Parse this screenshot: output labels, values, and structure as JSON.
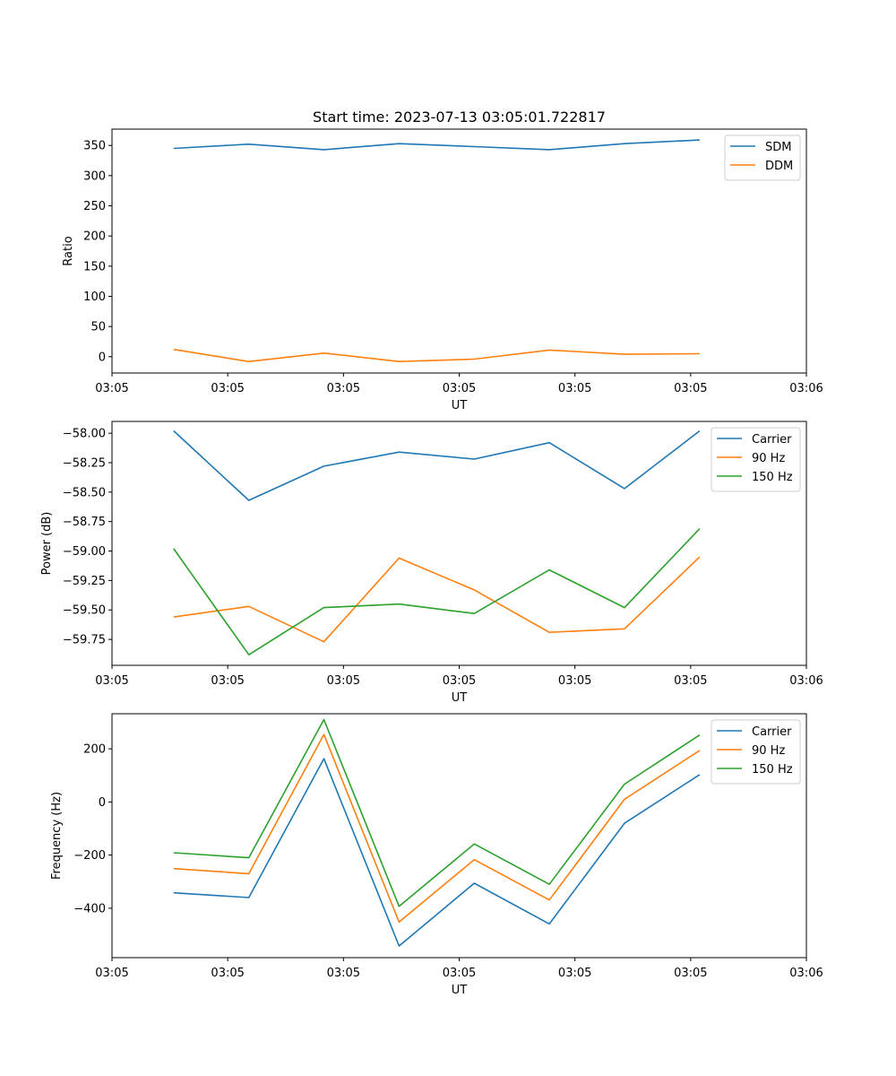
{
  "chart_data": [
    {
      "type": "line",
      "title": "Start time: 2023-07-13 03:05:01.722817",
      "xlabel": "UT",
      "ylabel": "Ratio",
      "x": [
        1,
        2,
        3,
        4,
        5,
        6,
        7,
        8
      ],
      "xlim": [
        0.18,
        9.42
      ],
      "xticks": [
        {
          "value": 0.18,
          "label": "03:05"
        },
        {
          "value": 1.72,
          "label": "03:05"
        },
        {
          "value": 3.26,
          "label": "03:05"
        },
        {
          "value": 4.8,
          "label": "03:05"
        },
        {
          "value": 6.34,
          "label": "03:05"
        },
        {
          "value": 7.88,
          "label": "03:05"
        },
        {
          "value": 9.42,
          "label": "03:06"
        }
      ],
      "ylim": [
        -27,
        377
      ],
      "yticks": [
        {
          "value": 0,
          "label": "0"
        },
        {
          "value": 50,
          "label": "50"
        },
        {
          "value": 100,
          "label": "100"
        },
        {
          "value": 150,
          "label": "150"
        },
        {
          "value": 200,
          "label": "200"
        },
        {
          "value": 250,
          "label": "250"
        },
        {
          "value": 300,
          "label": "300"
        },
        {
          "value": 350,
          "label": "350"
        }
      ],
      "legend": "top-right",
      "series": [
        {
          "name": "SDM",
          "color": "#1f77b4",
          "values": [
            345,
            352,
            343,
            353,
            348,
            343,
            353,
            359
          ]
        },
        {
          "name": "DDM",
          "color": "#ff7f0e",
          "values": [
            12,
            -8,
            6,
            -8,
            -4,
            11,
            4,
            5
          ]
        }
      ]
    },
    {
      "type": "line",
      "title": "",
      "xlabel": "UT",
      "ylabel": "Power (dB)",
      "x": [
        1,
        2,
        3,
        4,
        5,
        6,
        7,
        8
      ],
      "xlim": [
        0.18,
        9.42
      ],
      "xticks": [
        {
          "value": 0.18,
          "label": "03:05"
        },
        {
          "value": 1.72,
          "label": "03:05"
        },
        {
          "value": 3.26,
          "label": "03:05"
        },
        {
          "value": 4.8,
          "label": "03:05"
        },
        {
          "value": 6.34,
          "label": "03:05"
        },
        {
          "value": 7.88,
          "label": "03:05"
        },
        {
          "value": 9.42,
          "label": "03:06"
        }
      ],
      "ylim": [
        -59.97,
        -57.9
      ],
      "yticks": [
        {
          "value": -59.75,
          "label": "−59.75"
        },
        {
          "value": -59.5,
          "label": "−59.50"
        },
        {
          "value": -59.25,
          "label": "−59.25"
        },
        {
          "value": -59.0,
          "label": "−59.00"
        },
        {
          "value": -58.75,
          "label": "−58.75"
        },
        {
          "value": -58.5,
          "label": "−58.50"
        },
        {
          "value": -58.25,
          "label": "−58.25"
        },
        {
          "value": -58.0,
          "label": "−58.00"
        }
      ],
      "legend": "top-right",
      "series": [
        {
          "name": "Carrier",
          "color": "#1f77b4",
          "values": [
            -57.98,
            -58.57,
            -58.28,
            -58.16,
            -58.22,
            -58.08,
            -58.47,
            -57.98
          ]
        },
        {
          "name": "90 Hz",
          "color": "#ff7f0e",
          "values": [
            -59.56,
            -59.47,
            -59.77,
            -59.06,
            -59.33,
            -59.69,
            -59.66,
            -59.05
          ]
        },
        {
          "name": "150 Hz",
          "color": "#2ca02c",
          "values": [
            -58.98,
            -59.88,
            -59.48,
            -59.45,
            -59.53,
            -59.16,
            -59.48,
            -58.81
          ]
        }
      ]
    },
    {
      "type": "line",
      "title": "",
      "xlabel": "UT",
      "ylabel": "Frequency (Hz)",
      "x": [
        1,
        2,
        3,
        4,
        5,
        6,
        7,
        8
      ],
      "xlim": [
        0.18,
        9.42
      ],
      "xticks": [
        {
          "value": 0.18,
          "label": "03:05"
        },
        {
          "value": 1.72,
          "label": "03:05"
        },
        {
          "value": 3.26,
          "label": "03:05"
        },
        {
          "value": 4.8,
          "label": "03:05"
        },
        {
          "value": 6.34,
          "label": "03:05"
        },
        {
          "value": 7.88,
          "label": "03:05"
        },
        {
          "value": 9.42,
          "label": "03:06"
        }
      ],
      "ylim": [
        -586,
        332
      ],
      "yticks": [
        {
          "value": -400,
          "label": "−400"
        },
        {
          "value": -200,
          "label": "−200"
        },
        {
          "value": 0,
          "label": "0"
        },
        {
          "value": 200,
          "label": "200"
        }
      ],
      "legend": "top-right",
      "series": [
        {
          "name": "Carrier",
          "color": "#1f77b4",
          "values": [
            -342,
            -360,
            163,
            -542,
            -306,
            -459,
            -80,
            103
          ]
        },
        {
          "name": "90 Hz",
          "color": "#ff7f0e",
          "values": [
            -251,
            -270,
            254,
            -452,
            -217,
            -369,
            10,
            194
          ]
        },
        {
          "name": "150 Hz",
          "color": "#2ca02c",
          "values": [
            -191,
            -210,
            310,
            -393,
            -158,
            -310,
            67,
            252
          ]
        }
      ]
    }
  ]
}
